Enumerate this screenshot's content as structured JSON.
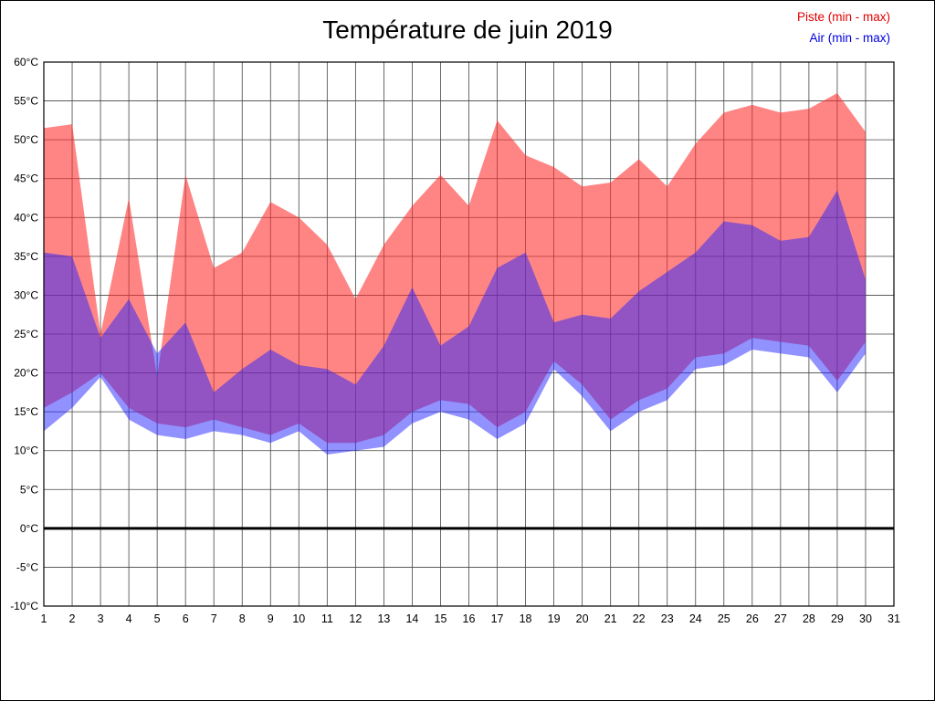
{
  "title": "Température de juin 2019",
  "legend": [
    {
      "label": "Piste (min - max)",
      "color": "#e00000"
    },
    {
      "label": "Air (min - max)",
      "color": "#0000e0"
    }
  ],
  "chart_data": {
    "type": "area",
    "title": "Température de juin 2019",
    "xlabel": "",
    "ylabel": "",
    "legend_position": "top-right",
    "grid": true,
    "grid_color": "#444444",
    "x": [
      1,
      2,
      3,
      4,
      5,
      6,
      7,
      8,
      9,
      10,
      11,
      12,
      13,
      14,
      15,
      16,
      17,
      18,
      19,
      20,
      21,
      22,
      23,
      24,
      25,
      26,
      27,
      28,
      29,
      30
    ],
    "x_axis": {
      "min": 1,
      "max": 31,
      "tick_step": 1
    },
    "y_axis": {
      "min": -10,
      "max": 60,
      "tick_step": 5,
      "unit": "°C"
    },
    "zero_line": {
      "value": 0,
      "color": "#000000",
      "width": 3
    },
    "series": [
      {
        "name": "Piste (min - max)",
        "key": "piste-band",
        "fill": "rgba(255,45,45,0.58)",
        "max": [
          51.5,
          52,
          25,
          42.5,
          19.5,
          45.5,
          33.5,
          35.5,
          42,
          40,
          36.5,
          29.5,
          36.5,
          41.5,
          45.5,
          41.5,
          52.5,
          48,
          46.5,
          44,
          44.5,
          47.5,
          44,
          49.5,
          53.5,
          54.5,
          53.5,
          54,
          56,
          51
        ],
        "min": [
          15.5,
          17.5,
          20,
          15.5,
          13.5,
          13,
          14,
          13,
          12,
          13.5,
          11,
          11,
          12,
          15,
          16.5,
          16,
          13,
          15,
          21.5,
          18.5,
          14,
          16.5,
          18,
          22,
          22.5,
          24.5,
          24,
          23.5,
          19,
          24
        ]
      },
      {
        "name": "Air (min - max)",
        "key": "air-band",
        "fill": "rgba(35,35,255,0.5)",
        "max": [
          35.5,
          35,
          24.5,
          29.5,
          22.5,
          26.5,
          17.5,
          20.5,
          23,
          21,
          20.5,
          18.5,
          23.5,
          31,
          23.5,
          26,
          33.5,
          35.5,
          26.5,
          27.5,
          27,
          30.5,
          33,
          35.5,
          39.5,
          39,
          37,
          37.5,
          43.5,
          32
        ],
        "min": [
          12.5,
          15.5,
          19.5,
          14,
          12,
          11.5,
          12.5,
          12,
          11,
          12.5,
          9.5,
          10,
          10.5,
          13.5,
          15,
          14,
          11.5,
          13.5,
          20.5,
          17,
          12.5,
          15,
          16.5,
          20.5,
          21,
          23,
          22.5,
          22,
          17.5,
          22.5
        ]
      }
    ]
  }
}
